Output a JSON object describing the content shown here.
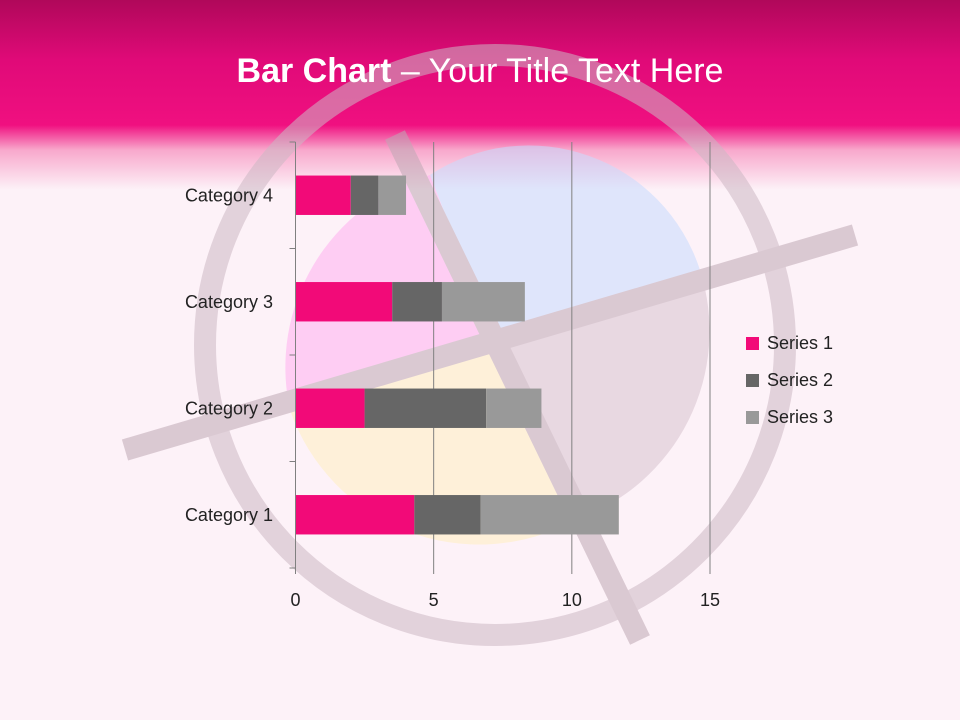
{
  "slide": {
    "title_bold": "Bar Chart",
    "title_rest": " – Your Title Text Here"
  },
  "colors": {
    "header": "#e00a78",
    "series": [
      "#f20a78",
      "#666666",
      "#999999"
    ]
  },
  "chart_data": {
    "type": "bar",
    "orientation": "horizontal",
    "stacked": true,
    "categories": [
      "Category 1",
      "Category 2",
      "Category 3",
      "Category 4"
    ],
    "series": [
      {
        "name": "Series 1",
        "values": [
          4.3,
          2.5,
          3.5,
          2
        ]
      },
      {
        "name": "Series 2",
        "values": [
          2.4,
          4.4,
          1.8,
          1
        ]
      },
      {
        "name": "Series 3",
        "values": [
          5,
          2,
          3,
          1
        ]
      }
    ],
    "xlim": [
      0,
      15
    ],
    "xticks": [
      "0",
      "5",
      "10",
      "15"
    ],
    "grid": true,
    "legend": "right"
  }
}
